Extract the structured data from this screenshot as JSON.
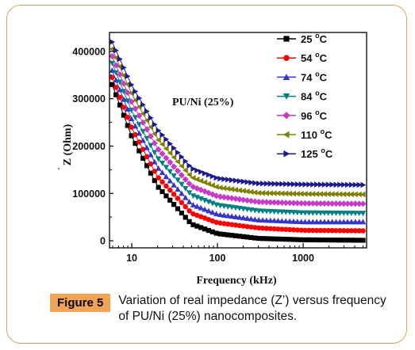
{
  "caption": {
    "label": "Figure 5",
    "text": "Variation of real impedance (Z’) versus frequency of PU/Ni (25%) nanocomposites."
  },
  "chart_data": {
    "type": "scatter",
    "annotation": "PU/Ni (25%)",
    "xlabel": "Frequency (kHz)",
    "ylabel": "Z (Ohm)",
    "ylabel_prime": "'",
    "xscale": "log",
    "xlim": [
      5.5,
      5500
    ],
    "ylim": [
      -15000,
      440000
    ],
    "xticks": [
      10,
      100,
      1000
    ],
    "xtick_labels": [
      "10",
      "100",
      "1000"
    ],
    "yticks": [
      0,
      100000,
      200000,
      300000,
      400000
    ],
    "ytick_labels": [
      "0",
      "100000",
      "200000",
      "300000",
      "400000"
    ],
    "legend_position": "top-right",
    "x": [
      5.9,
      10,
      20,
      50,
      100,
      300,
      1000,
      5000
    ],
    "series": [
      {
        "name": "25 °C",
        "temp": "25",
        "color": "#000000",
        "marker": "square",
        "values": [
          330000,
          220000,
          115000,
          35000,
          15000,
          5000,
          2000,
          1000
        ]
      },
      {
        "name": "54 °C",
        "temp": "54",
        "color": "#ff0000",
        "marker": "circle",
        "values": [
          345000,
          238000,
          135000,
          58000,
          38000,
          27000,
          22000,
          21000
        ]
      },
      {
        "name": "74 °C",
        "temp": "74",
        "color": "#3535c8",
        "marker": "triangle-up",
        "values": [
          360000,
          256000,
          155000,
          77000,
          56000,
          44000,
          40000,
          40000
        ]
      },
      {
        "name": "84 °C",
        "temp": "84",
        "color": "#008080",
        "marker": "triangle-down",
        "values": [
          375000,
          274000,
          175000,
          96000,
          75000,
          63000,
          59000,
          58000
        ]
      },
      {
        "name": "96 °C",
        "temp": "96",
        "color": "#c63cc6",
        "marker": "diamond",
        "values": [
          390000,
          292000,
          195000,
          115000,
          94000,
          82000,
          79000,
          78000
        ]
      },
      {
        "name": "110 °C",
        "temp": "110",
        "color": "#808000",
        "marker": "triangle-left",
        "values": [
          405000,
          310000,
          215000,
          134000,
          113000,
          101000,
          99000,
          98000
        ]
      },
      {
        "name": "125 °C",
        "temp": "125",
        "color": "#1a1a8c",
        "marker": "triangle-right",
        "values": [
          420000,
          328000,
          235000,
          153000,
          132000,
          121000,
          119000,
          118000
        ]
      }
    ]
  }
}
